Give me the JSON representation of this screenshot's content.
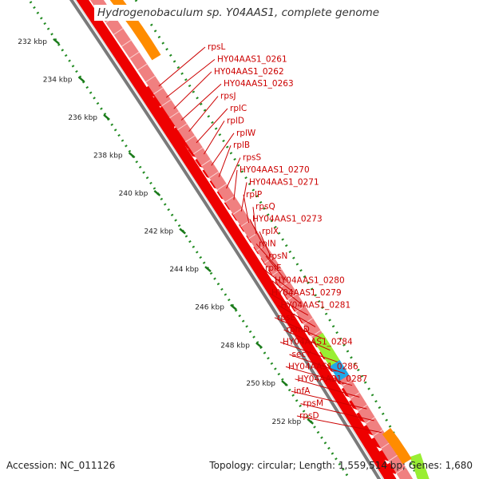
{
  "title": "Hydrogenobaculum sp. Y04AAS1, complete genome",
  "footer": {
    "accession": "Accession: NC_011126",
    "summary": "Topology: circular; Length: 1,559,514 bp; Genes: 1,680"
  },
  "ruler": {
    "ticks": [
      "232 kbp",
      "234 kbp",
      "236 kbp",
      "238 kbp",
      "240 kbp",
      "242 kbp",
      "244 kbp",
      "246 kbp",
      "248 kbp",
      "250 kbp",
      "252 kbp"
    ]
  },
  "genes": [
    "rpsL",
    "HY04AAS1_0261",
    "HY04AAS1_0262",
    "HY04AAS1_0263",
    "rpsJ",
    "rplC",
    "rplD",
    "rplW",
    "rplB",
    "rpsS",
    "HY04AAS1_0270",
    "HY04AAS1_0271",
    "rplP",
    "rpsQ",
    "HY04AAS1_0273",
    "rplX",
    "rplN",
    "rpsN",
    "rplE",
    "HY04AAS1_0280",
    "HY04AAS1_0279",
    "HY04AAS1_0281",
    "rpsE",
    "rpmD",
    "HY04AAS1_0284",
    "secY",
    "HY04AAS1_0286",
    "HY04AAS1_0287",
    "infA",
    "rpsM",
    "rpsD"
  ],
  "colors": {
    "cds": "#ee0000",
    "gene_ring": "#f08080",
    "orange_ring": "#ff8c00",
    "green_feature": "#99ee33",
    "blue_feature": "#1fa8e8",
    "backbone": "#7a7a7a",
    "gc_dots": "#228b22",
    "label": "#cc0000"
  }
}
